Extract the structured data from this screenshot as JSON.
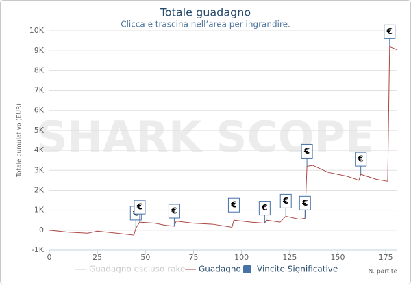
{
  "chart_data": {
    "type": "line",
    "title": "Totale guadagno",
    "subtitle": "Clicca e trascina nell’area per ingrandire.",
    "watermark": "SHARK SCOPE",
    "y_label": "Totale cumulativo (EUR)",
    "x_label": "N. partite",
    "xlim": [
      0,
      181
    ],
    "ylim": [
      -1000,
      10000
    ],
    "xticks": [
      0,
      25,
      50,
      75,
      100,
      125,
      150,
      175
    ],
    "yticks": [
      {
        "value": -1000,
        "label": "-1K"
      },
      0,
      {
        "value": 1000,
        "label": "1K"
      },
      {
        "value": 2000,
        "label": "2K"
      },
      {
        "value": 3000,
        "label": "3K"
      },
      {
        "value": 4000,
        "label": "4K"
      },
      {
        "value": 5000,
        "label": "5K"
      },
      {
        "value": 6000,
        "label": "6K"
      },
      {
        "value": 7000,
        "label": "7K"
      },
      {
        "value": 8000,
        "label": "8K"
      },
      {
        "value": 9000,
        "label": "9K"
      },
      {
        "value": 10000,
        "label": "10K"
      }
    ],
    "grid": true,
    "series": [
      {
        "name": "Guadagno escluso rake",
        "color": "#cccccc",
        "visible": false
      },
      {
        "name": "Guadagno",
        "color": "#aa4643",
        "visible": true,
        "x": [
          0,
          10,
          20,
          25,
          35,
          44,
          45,
          47,
          55,
          60,
          65,
          66,
          75,
          85,
          95,
          96,
          105,
          112,
          113,
          120,
          123,
          130,
          133,
          134,
          137,
          145,
          155,
          161,
          162,
          170,
          176,
          177,
          181
        ],
        "values": [
          0,
          -100,
          -150,
          -50,
          -150,
          -250,
          100,
          400,
          350,
          250,
          200,
          450,
          350,
          300,
          150,
          500,
          400,
          350,
          500,
          400,
          700,
          550,
          600,
          3200,
          3250,
          2900,
          2700,
          2500,
          2800,
          2550,
          2450,
          9200,
          9050
        ]
      }
    ],
    "flags": {
      "name": "Vincite Significative",
      "color": "#4572a7",
      "label": "€",
      "x": [
        45,
        47,
        65,
        96,
        112,
        123,
        133,
        134,
        162,
        177
      ],
      "y": [
        100,
        400,
        200,
        500,
        350,
        700,
        600,
        3200,
        2800,
        9200
      ]
    }
  }
}
